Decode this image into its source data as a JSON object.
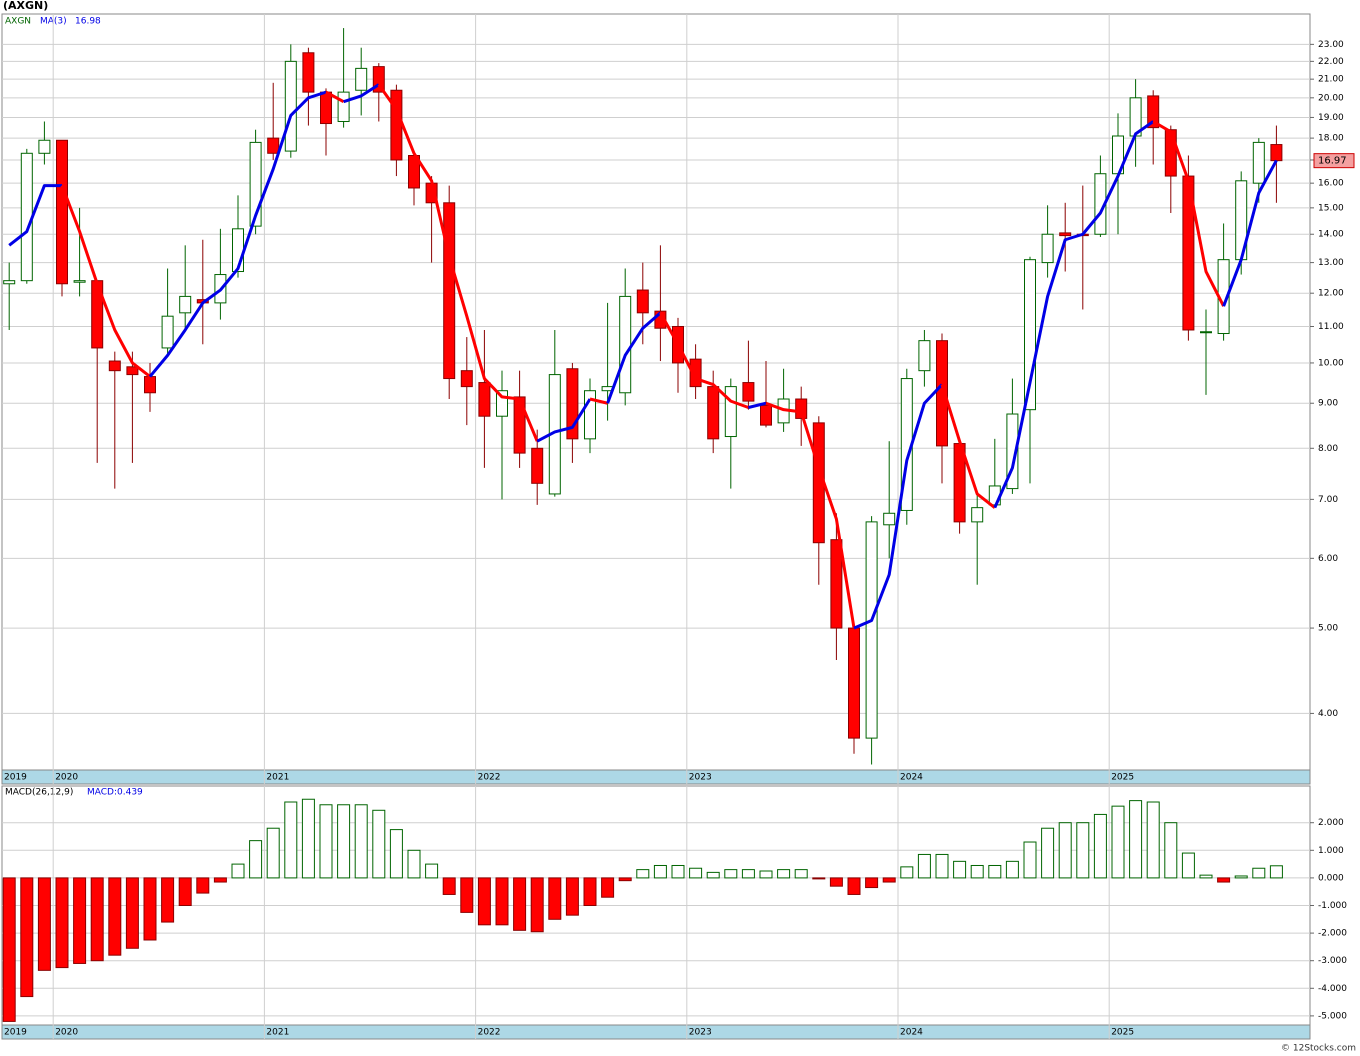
{
  "footer": "© 12Stocks.com",
  "chart_data": [
    {
      "type": "candlestick",
      "title": "(AXGN)",
      "symbol": "AXGN",
      "categories": [
        "2019",
        null,
        null,
        "2020",
        null,
        null,
        null,
        null,
        null,
        null,
        null,
        null,
        null,
        null,
        null,
        "2021",
        null,
        null,
        null,
        null,
        null,
        null,
        null,
        null,
        null,
        null,
        null,
        "2022",
        null,
        null,
        null,
        null,
        null,
        null,
        null,
        null,
        null,
        null,
        null,
        "2023",
        null,
        null,
        null,
        null,
        null,
        null,
        null,
        null,
        null,
        null,
        null,
        "2024",
        null,
        null,
        null,
        null,
        null,
        null,
        null,
        null,
        null,
        null,
        null,
        "2025",
        null,
        null,
        null,
        null,
        null,
        null,
        null,
        null,
        null
      ],
      "open": [
        12.3,
        12.4,
        17.3,
        17.9,
        12.35,
        12.4,
        10.05,
        9.9,
        9.65,
        10.4,
        11.4,
        11.8,
        11.7,
        12.7,
        14.3,
        18.0,
        17.4,
        22.5,
        20.3,
        18.8,
        20.4,
        21.7,
        20.4,
        17.2,
        16.0,
        15.2,
        9.8,
        9.5,
        8.7,
        9.15,
        8.0,
        7.1,
        9.85,
        8.2,
        9.3,
        9.25,
        12.1,
        11.45,
        11.0,
        10.1,
        9.4,
        8.25,
        9.5,
        8.95,
        8.55,
        9.1,
        8.55,
        6.3,
        5.0,
        3.75,
        6.55,
        6.8,
        9.8,
        10.6,
        8.1,
        6.6,
        6.9,
        7.2,
        8.85,
        13.0,
        14.05,
        14.0,
        14.0,
        16.4,
        18.1,
        20.1,
        18.4,
        16.3,
        10.85,
        10.8,
        13.1,
        16.0,
        17.7
      ],
      "high": [
        13.0,
        17.5,
        18.8,
        17.9,
        15.0,
        12.4,
        10.3,
        10.3,
        10.0,
        12.8,
        13.6,
        13.8,
        14.2,
        15.5,
        18.4,
        20.8,
        23.0,
        22.8,
        20.5,
        24.0,
        22.8,
        21.9,
        20.7,
        17.3,
        16.3,
        15.9,
        10.7,
        10.9,
        9.8,
        9.8,
        8.4,
        10.9,
        10.0,
        9.6,
        11.7,
        12.8,
        13.0,
        13.6,
        11.25,
        10.5,
        9.8,
        9.6,
        10.6,
        10.05,
        9.85,
        9.4,
        8.7,
        6.75,
        5.0,
        6.7,
        8.15,
        9.85,
        10.9,
        10.8,
        8.2,
        7.1,
        8.2,
        9.6,
        13.2,
        15.1,
        15.2,
        15.9,
        17.2,
        19.2,
        21.0,
        20.4,
        18.6,
        17.2,
        11.5,
        14.4,
        16.5,
        18.0,
        18.6
      ],
      "low": [
        10.9,
        12.3,
        16.8,
        11.9,
        11.9,
        7.7,
        7.2,
        7.7,
        8.8,
        10.2,
        10.9,
        10.5,
        11.2,
        12.5,
        14.0,
        17.0,
        17.1,
        18.6,
        17.2,
        18.5,
        19.1,
        18.8,
        16.3,
        15.1,
        13.0,
        9.1,
        8.5,
        7.6,
        7.0,
        7.6,
        6.9,
        7.05,
        7.7,
        7.9,
        8.6,
        8.95,
        10.5,
        10.05,
        9.25,
        9.1,
        7.9,
        7.2,
        8.85,
        8.45,
        8.35,
        8.05,
        5.6,
        4.6,
        3.6,
        3.5,
        6.0,
        6.55,
        9.4,
        7.3,
        6.4,
        5.6,
        6.9,
        7.1,
        7.3,
        12.5,
        12.7,
        11.5,
        13.9,
        14.0,
        16.7,
        16.8,
        14.8,
        10.6,
        9.2,
        10.6,
        12.6,
        15.2,
        15.2
      ],
      "close": [
        12.4,
        17.3,
        17.9,
        12.3,
        12.4,
        10.4,
        9.8,
        9.7,
        9.25,
        11.3,
        11.9,
        11.7,
        12.6,
        14.2,
        17.8,
        17.3,
        22.0,
        20.3,
        18.7,
        20.3,
        21.6,
        20.3,
        17.0,
        15.8,
        15.2,
        9.6,
        9.4,
        8.7,
        9.3,
        7.9,
        7.3,
        9.7,
        8.2,
        9.3,
        9.4,
        11.9,
        11.4,
        10.95,
        10.0,
        9.4,
        8.2,
        9.4,
        9.05,
        8.5,
        9.1,
        8.65,
        6.25,
        5.0,
        3.75,
        6.6,
        6.75,
        9.6,
        10.6,
        8.05,
        6.6,
        6.85,
        7.25,
        8.75,
        13.1,
        14.0,
        13.95,
        13.95,
        16.4,
        18.1,
        20.0,
        18.5,
        16.3,
        10.9,
        10.85,
        13.1,
        16.1,
        17.8,
        16.97
      ],
      "up_color": "#006400",
      "down_color": "#ff0000",
      "ma": {
        "name": "MA(3)",
        "up_color": "#0000e6",
        "down_color": "#ff0000",
        "values": [
          13.6,
          14.1,
          15.9,
          15.9,
          14.1,
          12.3,
          10.9,
          10.0,
          9.65,
          10.2,
          10.9,
          11.7,
          12.1,
          12.8,
          14.7,
          16.6,
          19.1,
          20.0,
          20.3,
          19.8,
          20.1,
          20.7,
          19.4,
          17.3,
          16.1,
          13.2,
          11.3,
          9.6,
          9.15,
          9.1,
          8.15,
          8.35,
          8.45,
          9.1,
          9.0,
          10.2,
          10.95,
          11.4,
          10.5,
          9.6,
          9.45,
          9.05,
          8.9,
          9.0,
          8.85,
          8.8,
          7.6,
          6.65,
          5.0,
          5.1,
          5.75,
          7.75,
          9.0,
          9.45,
          8.15,
          7.1,
          6.85,
          7.6,
          9.5,
          11.9,
          13.8,
          14.0,
          14.8,
          16.3,
          18.2,
          18.8,
          18.3,
          16.1,
          12.7,
          11.6,
          13.1,
          15.6,
          16.98
        ]
      },
      "log_scale": true,
      "grid": true,
      "ylim": [
        3.45,
        24.9
      ],
      "yticks": [
        {
          "value": 4,
          "label": "4.00"
        },
        {
          "value": 5,
          "label": "5.00"
        },
        {
          "value": 6,
          "label": "6.00"
        },
        {
          "value": 7,
          "label": "7.00"
        },
        {
          "value": 8,
          "label": "8.00"
        },
        {
          "value": 9,
          "label": "9.00"
        },
        {
          "value": 10,
          "label": "10.00"
        },
        {
          "value": 11,
          "label": "11.00"
        },
        {
          "value": 12,
          "label": "12.00"
        },
        {
          "value": 13,
          "label": "13.00"
        },
        {
          "value": 14,
          "label": "14.00"
        },
        {
          "value": 15,
          "label": "15.00"
        },
        {
          "value": 16,
          "label": "16.00"
        },
        {
          "value": 17,
          "label": "17.00"
        },
        {
          "value": 18,
          "label": "18.00"
        },
        {
          "value": 19,
          "label": "19.00"
        },
        {
          "value": 20,
          "label": "20.00"
        },
        {
          "value": 21,
          "label": "21.00"
        },
        {
          "value": 22,
          "label": "22.00"
        },
        {
          "value": 23,
          "label": "23.00"
        }
      ]
    },
    {
      "type": "bar",
      "name": "MACD(26,12,9)",
      "legend": "MACD:0.439",
      "up_color": "#006400",
      "down_color": "#ff0000",
      "grid": true,
      "values": [
        -5.2,
        -4.3,
        -3.35,
        -3.25,
        -3.1,
        -3.0,
        -2.8,
        -2.55,
        -2.25,
        -1.6,
        -1.0,
        -0.55,
        -0.15,
        0.5,
        1.35,
        1.8,
        2.75,
        2.85,
        2.65,
        2.65,
        2.65,
        2.45,
        1.75,
        1.0,
        0.5,
        -0.6,
        -1.25,
        -1.7,
        -1.7,
        -1.9,
        -1.95,
        -1.5,
        -1.35,
        -1.0,
        -0.7,
        -0.1,
        0.3,
        0.45,
        0.45,
        0.35,
        0.2,
        0.3,
        0.3,
        0.25,
        0.3,
        0.3,
        -0.02,
        -0.3,
        -0.6,
        -0.35,
        -0.15,
        0.4,
        0.85,
        0.85,
        0.6,
        0.45,
        0.45,
        0.6,
        1.3,
        1.8,
        2.0,
        2.0,
        2.3,
        2.6,
        2.8,
        2.75,
        2.0,
        0.9,
        0.1,
        -0.15,
        0.07,
        0.35,
        0.439
      ],
      "ylim": [
        -5.33,
        3.33
      ],
      "yticks": [
        {
          "value": -5,
          "label": "-5.000"
        },
        {
          "value": -4,
          "label": "-4.000"
        },
        {
          "value": -3,
          "label": "-3.000"
        },
        {
          "value": -2,
          "label": "-2.000"
        },
        {
          "value": -1,
          "label": "-1.000"
        },
        {
          "value": 0,
          "label": "0.000"
        },
        {
          "value": 1,
          "label": "1.000"
        },
        {
          "value": 2,
          "label": "2.000"
        }
      ]
    }
  ]
}
